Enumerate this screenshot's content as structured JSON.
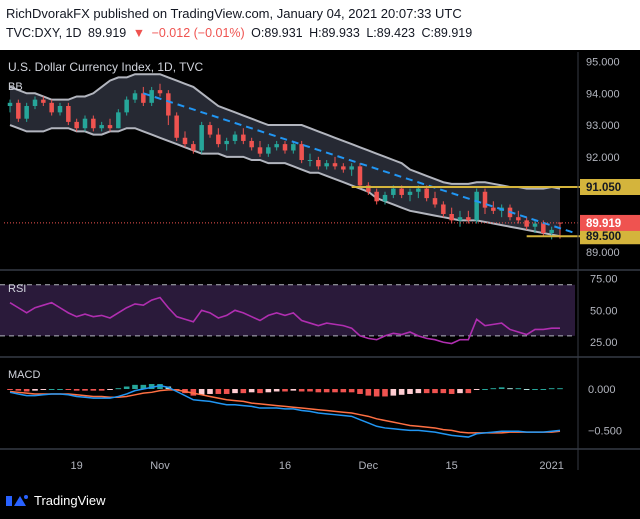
{
  "header": {
    "publisher_line": "RichDvorakFX published on TradingView.com, January 04, 2021 20:07:33 UTC",
    "symbol": "TVC:DXY, 1D",
    "last": "89.919",
    "change_arrow": "▼",
    "change": "−0.012 (−0.01%)",
    "open": "O:89.931",
    "high": "H:89.933",
    "low": "L:89.423",
    "close": "C:89.919"
  },
  "footer": {
    "logo_text": "TradingView"
  },
  "colors": {
    "up": "#26a69a",
    "down": "#ef5350",
    "bb_band": "#b2b5be",
    "bb_fill": "#2a2e39",
    "trendline": "#2196f3",
    "level": "#d4b43c",
    "rsi": "#b02eb0",
    "rsi_band": "#2a1a3a",
    "macd": "#2196f3",
    "signal": "#ff7043",
    "hist_up": "#26a69a",
    "hist_up_light": "#b2dfdb",
    "hist_down": "#ef5350",
    "hist_down_light": "#ffcdd2"
  },
  "chart_data": [
    {
      "type": "candlestick",
      "title": "U.S. Dollar Currency Index, 1D, TVC",
      "indicator_label": "BB",
      "ylim": [
        88.5,
        95.3
      ],
      "y_ticks": [
        89.0,
        90.0,
        91.0,
        92.0,
        93.0,
        94.0,
        95.0
      ],
      "y_tick_labels": [
        "89.000",
        "90.000",
        "91.000",
        "92.000",
        "93.000",
        "94.000",
        "95.000"
      ],
      "x_ticks": [
        {
          "i": 8,
          "label": "19"
        },
        {
          "i": 18,
          "label": "Nov"
        },
        {
          "i": 33,
          "label": "16"
        },
        {
          "i": 43,
          "label": "Dec"
        },
        {
          "i": 53,
          "label": "15"
        },
        {
          "i": 65,
          "label": "2021"
        }
      ],
      "ohlc": [
        [
          93.6,
          93.8,
          93.4,
          93.7
        ],
        [
          93.7,
          93.8,
          93.1,
          93.2
        ],
        [
          93.2,
          93.7,
          93.1,
          93.6
        ],
        [
          93.6,
          93.9,
          93.5,
          93.8
        ],
        [
          93.8,
          93.9,
          93.6,
          93.7
        ],
        [
          93.7,
          93.8,
          93.3,
          93.4
        ],
        [
          93.4,
          93.7,
          93.3,
          93.6
        ],
        [
          93.6,
          93.7,
          93.0,
          93.1
        ],
        [
          93.1,
          93.2,
          92.8,
          92.9
        ],
        [
          92.9,
          93.3,
          92.8,
          93.2
        ],
        [
          93.2,
          93.3,
          92.8,
          92.9
        ],
        [
          92.9,
          93.1,
          92.8,
          93.0
        ],
        [
          93.0,
          93.2,
          92.8,
          92.9
        ],
        [
          92.9,
          93.5,
          92.9,
          93.4
        ],
        [
          93.4,
          93.9,
          93.3,
          93.8
        ],
        [
          93.8,
          94.1,
          93.7,
          94.0
        ],
        [
          94.0,
          94.2,
          93.6,
          93.7
        ],
        [
          93.7,
          94.2,
          93.6,
          94.1
        ],
        [
          94.1,
          94.3,
          93.9,
          94.0
        ],
        [
          94.0,
          94.1,
          93.0,
          93.3
        ],
        [
          93.3,
          93.4,
          92.5,
          92.6
        ],
        [
          92.6,
          92.8,
          92.3,
          92.4
        ],
        [
          92.4,
          92.5,
          92.1,
          92.2
        ],
        [
          92.2,
          93.1,
          92.1,
          93.0
        ],
        [
          93.0,
          93.1,
          92.6,
          92.7
        ],
        [
          92.7,
          92.9,
          92.3,
          92.4
        ],
        [
          92.4,
          92.6,
          92.2,
          92.5
        ],
        [
          92.5,
          92.8,
          92.4,
          92.7
        ],
        [
          92.7,
          92.9,
          92.4,
          92.5
        ],
        [
          92.5,
          92.6,
          92.2,
          92.3
        ],
        [
          92.3,
          92.5,
          92.0,
          92.1
        ],
        [
          92.1,
          92.4,
          92.0,
          92.3
        ],
        [
          92.3,
          92.5,
          92.2,
          92.4
        ],
        [
          92.4,
          92.5,
          92.1,
          92.2
        ],
        [
          92.2,
          92.5,
          92.1,
          92.4
        ],
        [
          92.4,
          92.5,
          91.8,
          91.9
        ],
        [
          91.9,
          92.1,
          91.7,
          91.9
        ],
        [
          91.9,
          92.0,
          91.6,
          91.7
        ],
        [
          91.7,
          91.9,
          91.6,
          91.8
        ],
        [
          91.8,
          92.0,
          91.6,
          91.7
        ],
        [
          91.7,
          91.8,
          91.5,
          91.6
        ],
        [
          91.6,
          91.8,
          91.4,
          91.7
        ],
        [
          91.7,
          91.8,
          91.0,
          91.1
        ],
        [
          91.1,
          91.2,
          90.8,
          90.9
        ],
        [
          90.9,
          91.0,
          90.5,
          90.6
        ],
        [
          90.6,
          90.9,
          90.5,
          90.8
        ],
        [
          90.8,
          91.1,
          90.7,
          91.0
        ],
        [
          91.0,
          91.1,
          90.7,
          90.8
        ],
        [
          90.8,
          91.0,
          90.6,
          90.9
        ],
        [
          90.9,
          91.1,
          90.7,
          91.0
        ],
        [
          91.0,
          91.1,
          90.6,
          90.7
        ],
        [
          90.7,
          90.9,
          90.4,
          90.5
        ],
        [
          90.5,
          90.6,
          90.1,
          90.2
        ],
        [
          90.2,
          90.4,
          89.9,
          90.0
        ],
        [
          90.0,
          90.3,
          89.8,
          90.1
        ],
        [
          90.1,
          90.3,
          89.9,
          90.0
        ],
        [
          90.0,
          91.0,
          89.9,
          90.9
        ],
        [
          90.9,
          91.0,
          90.2,
          90.4
        ],
        [
          90.4,
          90.6,
          90.2,
          90.3
        ],
        [
          90.3,
          90.5,
          90.1,
          90.4
        ],
        [
          90.4,
          90.5,
          90.0,
          90.1
        ],
        [
          90.1,
          90.3,
          89.9,
          90.0
        ],
        [
          90.0,
          90.1,
          89.7,
          89.8
        ],
        [
          89.8,
          90.0,
          89.6,
          89.9
        ],
        [
          89.9,
          90.0,
          89.5,
          89.6
        ],
        [
          89.6,
          89.8,
          89.4,
          89.7
        ],
        [
          89.931,
          89.933,
          89.423,
          89.919
        ]
      ],
      "bb_upper": [
        94.2,
        94.1,
        94.0,
        94.0,
        93.9,
        93.8,
        93.8,
        93.8,
        93.9,
        93.9,
        94.0,
        94.2,
        94.4,
        94.5,
        94.5,
        94.6,
        94.6,
        94.6,
        94.6,
        94.5,
        94.4,
        94.3,
        94.2,
        94.0,
        93.8,
        93.6,
        93.5,
        93.4,
        93.3,
        93.2,
        93.1,
        93.0,
        93.0,
        93.0,
        93.0,
        93.0,
        92.9,
        92.8,
        92.7,
        92.6,
        92.5,
        92.4,
        92.3,
        92.2,
        92.1,
        92.0,
        91.9,
        91.8,
        91.6,
        91.5,
        91.4,
        91.3,
        91.2,
        91.15,
        91.15,
        91.15,
        91.2,
        91.2,
        91.15,
        91.1,
        91.05,
        91.05,
        91.0,
        91.0,
        91.0,
        91.05,
        91.0
      ],
      "bb_lower": [
        93.0,
        92.9,
        92.8,
        92.8,
        92.8,
        92.9,
        92.9,
        92.9,
        92.8,
        92.8,
        92.7,
        92.7,
        92.8,
        92.8,
        92.9,
        92.9,
        92.8,
        92.7,
        92.6,
        92.5,
        92.4,
        92.3,
        92.2,
        92.1,
        92.1,
        92.1,
        92.0,
        92.0,
        92.0,
        91.9,
        91.9,
        91.8,
        91.8,
        91.8,
        91.7,
        91.6,
        91.5,
        91.5,
        91.4,
        91.3,
        91.2,
        91.1,
        91.0,
        90.9,
        90.7,
        90.6,
        90.5,
        90.4,
        90.3,
        90.25,
        90.2,
        90.15,
        90.1,
        90.05,
        90.0,
        90.0,
        90.0,
        89.95,
        89.9,
        89.85,
        89.8,
        89.75,
        89.7,
        89.65,
        89.6,
        89.55,
        89.5
      ],
      "trendline": {
        "from": [
          16,
          94.0
        ],
        "to": [
          69,
          89.6
        ]
      },
      "levels": [
        {
          "value": 91.05,
          "label": "91.050",
          "from_i": 41
        },
        {
          "value": 89.5,
          "label": "89.500",
          "from_i": 62
        }
      ],
      "last_price_label": "89.919"
    },
    {
      "type": "line",
      "indicator_label": "RSI",
      "ylim": [
        15,
        80
      ],
      "y_ticks": [
        25,
        50,
        75
      ],
      "y_tick_labels": [
        "25.00",
        "50.00",
        "75.00"
      ],
      "band": [
        30,
        70
      ],
      "values": [
        56,
        52,
        48,
        52,
        54,
        56,
        52,
        48,
        45,
        47,
        45,
        46,
        44,
        48,
        52,
        55,
        54,
        58,
        60,
        52,
        45,
        43,
        41,
        50,
        48,
        44,
        46,
        50,
        48,
        45,
        42,
        46,
        48,
        46,
        48,
        42,
        40,
        38,
        40,
        39,
        38,
        36,
        30,
        28,
        27,
        30,
        32,
        31,
        33,
        30,
        28,
        27,
        25,
        24,
        27,
        27,
        43,
        38,
        39,
        40,
        35,
        33,
        31,
        35,
        35,
        36,
        36
      ]
    },
    {
      "type": "line",
      "indicator_label": "MACD",
      "ylim": [
        -0.7,
        0.35
      ],
      "y_ticks": [
        -0.5,
        0.0
      ],
      "y_tick_labels": [
        "−0.500",
        "0.000"
      ],
      "macd": [
        -0.04,
        -0.06,
        -0.08,
        -0.08,
        -0.07,
        -0.06,
        -0.06,
        -0.07,
        -0.09,
        -0.1,
        -0.11,
        -0.11,
        -0.11,
        -0.09,
        -0.06,
        -0.02,
        0.0,
        0.02,
        0.04,
        0.02,
        -0.03,
        -0.08,
        -0.13,
        -0.14,
        -0.15,
        -0.17,
        -0.19,
        -0.19,
        -0.2,
        -0.21,
        -0.23,
        -0.23,
        -0.23,
        -0.24,
        -0.24,
        -0.26,
        -0.27,
        -0.29,
        -0.3,
        -0.31,
        -0.32,
        -0.33,
        -0.37,
        -0.41,
        -0.45,
        -0.47,
        -0.48,
        -0.49,
        -0.5,
        -0.5,
        -0.51,
        -0.52,
        -0.54,
        -0.56,
        -0.57,
        -0.58,
        -0.54,
        -0.53,
        -0.52,
        -0.51,
        -0.51,
        -0.51,
        -0.52,
        -0.52,
        -0.52,
        -0.51,
        -0.5
      ],
      "signal": [
        -0.03,
        -0.04,
        -0.05,
        -0.06,
        -0.06,
        -0.06,
        -0.06,
        -0.06,
        -0.07,
        -0.08,
        -0.09,
        -0.09,
        -0.1,
        -0.1,
        -0.09,
        -0.07,
        -0.05,
        -0.04,
        -0.02,
        -0.01,
        -0.01,
        -0.03,
        -0.05,
        -0.07,
        -0.09,
        -0.11,
        -0.13,
        -0.14,
        -0.15,
        -0.17,
        -0.18,
        -0.19,
        -0.2,
        -0.21,
        -0.22,
        -0.23,
        -0.24,
        -0.25,
        -0.26,
        -0.27,
        -0.28,
        -0.29,
        -0.31,
        -0.33,
        -0.36,
        -0.38,
        -0.4,
        -0.42,
        -0.44,
        -0.45,
        -0.46,
        -0.47,
        -0.49,
        -0.5,
        -0.52,
        -0.53,
        -0.53,
        -0.53,
        -0.53,
        -0.53,
        -0.52,
        -0.52,
        -0.52,
        -0.52,
        -0.52,
        -0.52,
        -0.51
      ],
      "histogram": [
        -0.01,
        -0.02,
        -0.03,
        -0.02,
        -0.01,
        0.0,
        0.0,
        -0.01,
        -0.02,
        -0.02,
        -0.02,
        -0.02,
        -0.01,
        0.01,
        0.03,
        0.05,
        0.05,
        0.06,
        0.06,
        0.03,
        -0.02,
        -0.05,
        -0.08,
        -0.07,
        -0.06,
        -0.06,
        -0.06,
        -0.05,
        -0.05,
        -0.04,
        -0.05,
        -0.04,
        -0.03,
        -0.03,
        -0.02,
        -0.03,
        -0.03,
        -0.04,
        -0.04,
        -0.04,
        -0.04,
        -0.04,
        -0.06,
        -0.08,
        -0.09,
        -0.09,
        -0.08,
        -0.07,
        -0.06,
        -0.05,
        -0.05,
        -0.05,
        -0.05,
        -0.06,
        -0.05,
        -0.05,
        -0.01,
        0.0,
        0.01,
        0.02,
        0.01,
        0.01,
        0.0,
        0.0,
        0.0,
        0.01,
        0.01
      ]
    }
  ]
}
